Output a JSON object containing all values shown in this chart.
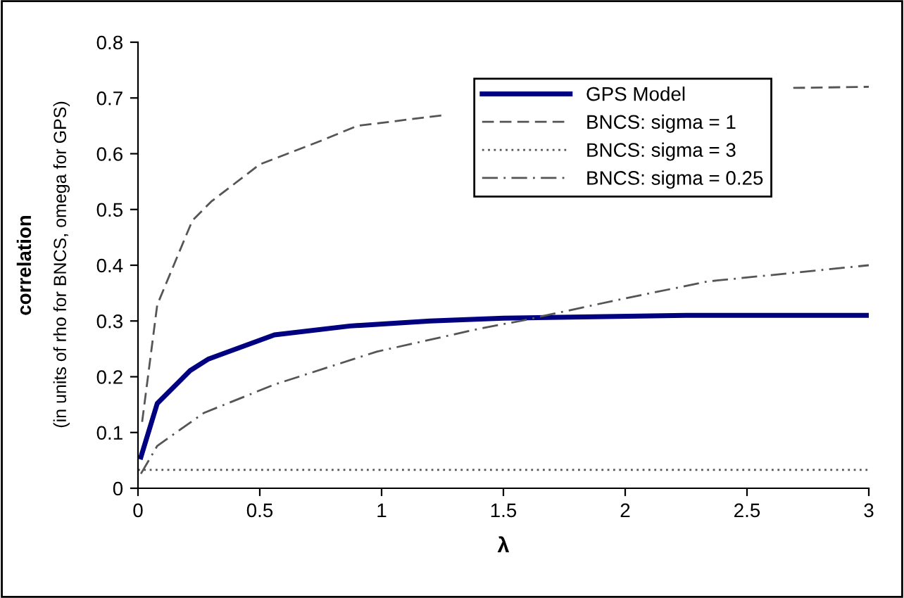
{
  "chart_data": {
    "type": "line",
    "xlabel": "λ",
    "ylabel": "correlation",
    "annotations": [
      "(in units of rho for BNCS, omega for GPS)"
    ],
    "xlim": [
      0,
      3
    ],
    "ylim": [
      0,
      0.8
    ],
    "xticks": [
      0,
      0.5,
      1,
      1.5,
      2,
      2.5,
      3
    ],
    "yticks": [
      0,
      0.1,
      0.2,
      0.3,
      0.4,
      0.5,
      0.6,
      0.7,
      0.8
    ],
    "grid": false,
    "legend": "top right",
    "marker": "none",
    "series": [
      {
        "name": "GPS Model",
        "color": "#000080",
        "line_style": "solid",
        "x": [
          0.012,
          0.079,
          0.214,
          0.29,
          0.56,
          0.87,
          1.2,
          1.5,
          2.25,
          3
        ],
        "values": [
          0.056,
          0.152,
          0.211,
          0.232,
          0.275,
          0.291,
          0.3,
          0.305,
          0.31,
          0.31
        ]
      },
      {
        "name": "BNCS: sigma = 1",
        "color": "#555555",
        "line_style": "dashed",
        "x": [
          0.017,
          0.079,
          0.223,
          0.3,
          0.5,
          0.75,
          0.9,
          1.25,
          1.5,
          2.25,
          2.69,
          3
        ],
        "values": [
          0.119,
          0.329,
          0.48,
          0.514,
          0.581,
          0.623,
          0.65,
          0.669,
          null,
          null,
          0.718,
          0.72
        ]
      },
      {
        "name": "BNCS: sigma = 3",
        "color": "#555555",
        "line_style": "dotted",
        "x": [
          0,
          3
        ],
        "values": [
          0.033,
          0.033
        ]
      },
      {
        "name": "BNCS: sigma = 0.25",
        "color": "#555555",
        "line_style": "dashdot",
        "x": [
          0.012,
          0.079,
          0.27,
          0.56,
          0.98,
          1.41,
          1.57,
          1.96,
          2.34,
          3
        ],
        "values": [
          0.026,
          0.076,
          0.135,
          0.186,
          0.245,
          0.287,
          0.3,
          0.337,
          0.371,
          0.4
        ]
      }
    ]
  }
}
